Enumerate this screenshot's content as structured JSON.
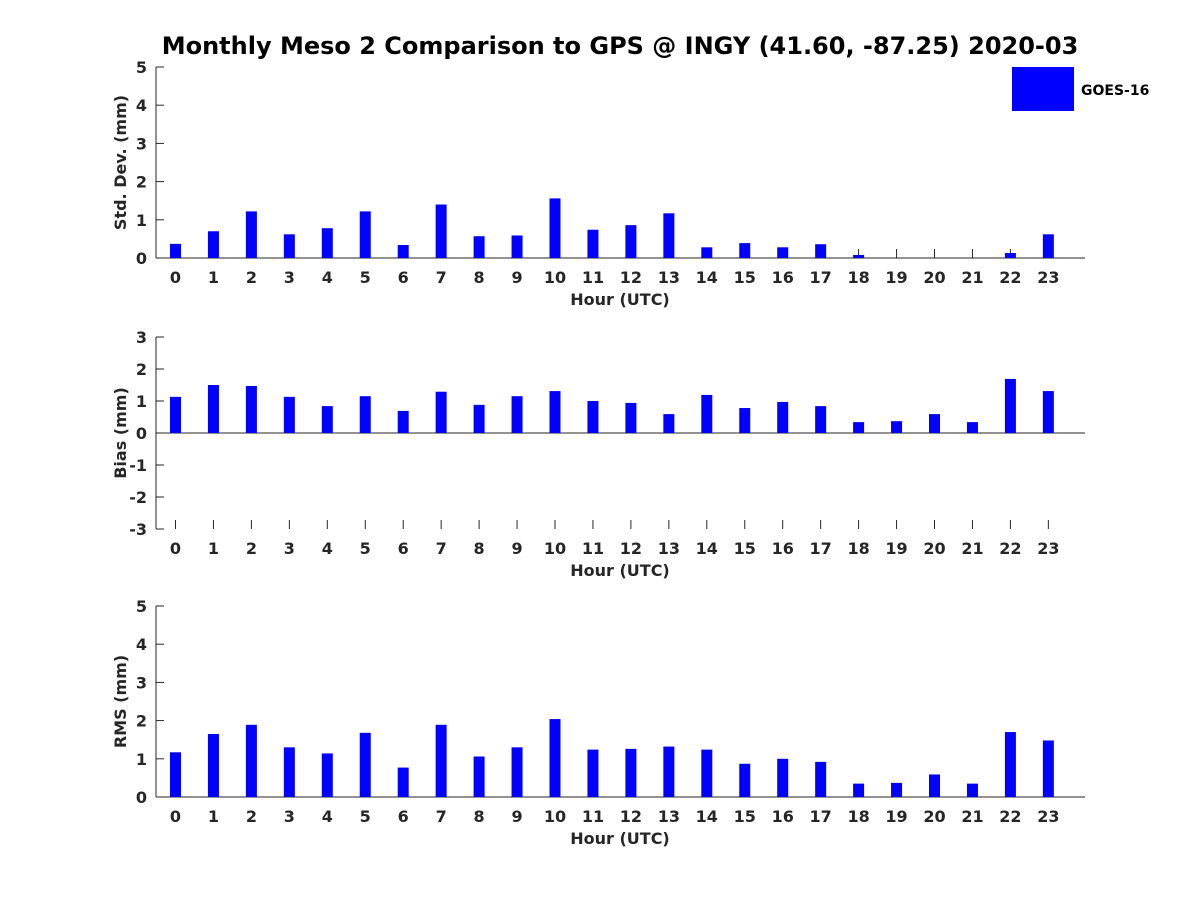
{
  "title": "Monthly Meso 2 Comparison to GPS @ INGY (41.60, -87.25) 2020-03",
  "legend": {
    "label": "GOES-16",
    "color": "#0000ff",
    "placement": "top-right"
  },
  "chart_data": [
    {
      "type": "bar",
      "xlabel": "Hour (UTC)",
      "ylabel": "Std. Dev. (mm)",
      "ylim": [
        0,
        5
      ],
      "yticks": [
        0,
        1,
        2,
        3,
        4,
        5
      ],
      "categories": [
        "0",
        "1",
        "2",
        "3",
        "4",
        "5",
        "6",
        "7",
        "8",
        "9",
        "10",
        "11",
        "12",
        "13",
        "14",
        "15",
        "16",
        "17",
        "18",
        "19",
        "20",
        "21",
        "22",
        "23"
      ],
      "series": [
        {
          "name": "GOES-16",
          "color": "#0000ff",
          "values": [
            0.37,
            0.7,
            1.22,
            0.62,
            0.78,
            1.22,
            0.34,
            1.4,
            0.57,
            0.59,
            1.56,
            0.74,
            0.86,
            1.17,
            0.28,
            0.39,
            0.28,
            0.36,
            0.08,
            null,
            null,
            null,
            0.13,
            0.62
          ]
        }
      ]
    },
    {
      "type": "bar",
      "xlabel": "Hour (UTC)",
      "ylabel": "Bias (mm)",
      "ylim": [
        -3,
        3
      ],
      "yticks": [
        -3,
        -2,
        -1,
        0,
        1,
        2,
        3
      ],
      "categories": [
        "0",
        "1",
        "2",
        "3",
        "4",
        "5",
        "6",
        "7",
        "8",
        "9",
        "10",
        "11",
        "12",
        "13",
        "14",
        "15",
        "16",
        "17",
        "18",
        "19",
        "20",
        "21",
        "22",
        "23"
      ],
      "series": [
        {
          "name": "GOES-16",
          "color": "#0000ff",
          "values": [
            1.13,
            1.5,
            1.47,
            1.13,
            0.84,
            1.15,
            0.69,
            1.29,
            0.88,
            1.15,
            1.31,
            1.0,
            0.94,
            0.59,
            1.19,
            0.78,
            0.97,
            0.84,
            0.34,
            0.37,
            0.59,
            0.34,
            1.69,
            1.31
          ]
        }
      ]
    },
    {
      "type": "bar",
      "xlabel": "Hour (UTC)",
      "ylabel": "RMS (mm)",
      "ylim": [
        0,
        5
      ],
      "yticks": [
        0,
        1,
        2,
        3,
        4,
        5
      ],
      "categories": [
        "0",
        "1",
        "2",
        "3",
        "4",
        "5",
        "6",
        "7",
        "8",
        "9",
        "10",
        "11",
        "12",
        "13",
        "14",
        "15",
        "16",
        "17",
        "18",
        "19",
        "20",
        "21",
        "22",
        "23"
      ],
      "series": [
        {
          "name": "GOES-16",
          "color": "#0000ff",
          "values": [
            1.17,
            1.65,
            1.89,
            1.3,
            1.14,
            1.68,
            0.77,
            1.89,
            1.06,
            1.3,
            2.04,
            1.24,
            1.26,
            1.32,
            1.24,
            0.87,
            1.0,
            0.92,
            0.35,
            0.37,
            0.59,
            0.35,
            1.7,
            1.48
          ]
        }
      ]
    }
  ]
}
